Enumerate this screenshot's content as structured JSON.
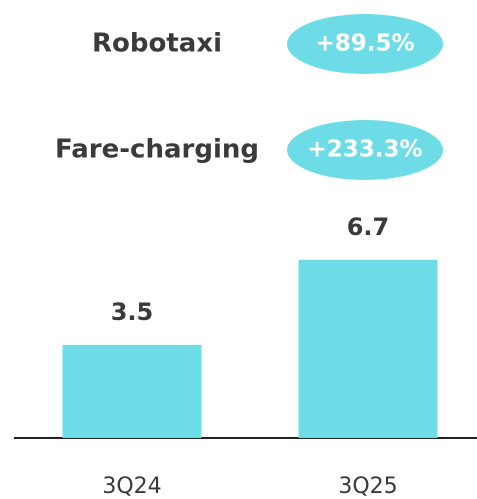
{
  "chart_data": {
    "type": "bar",
    "annotations": [
      {
        "text": "Robotaxi",
        "badge": "+89.5%"
      },
      {
        "text": "Fare-charging",
        "badge": "+233.3%"
      }
    ],
    "categories": [
      "3Q24",
      "3Q25"
    ],
    "values": [
      3.5,
      6.7
    ],
    "color": "#6ddce7",
    "badge_color": "#6ddce7"
  }
}
